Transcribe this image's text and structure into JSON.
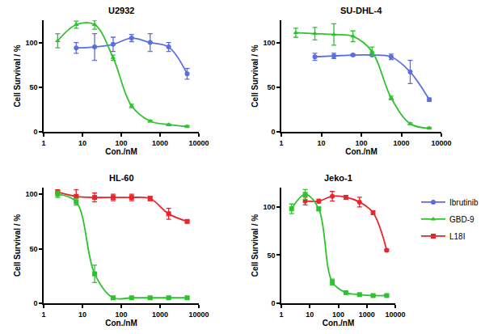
{
  "chart_data": [
    {
      "type": "line",
      "title": "U2932",
      "x_label": "Con./nM",
      "y_label": "Cell Survival / %",
      "log": "x",
      "xlim": [
        1,
        10000
      ],
      "xticks": [
        1,
        10,
        100,
        1000,
        10000
      ],
      "ylim": [
        0,
        125
      ],
      "yticks": [
        0,
        50,
        100
      ],
      "grid": false,
      "legend": "right",
      "series": [
        {
          "name": "Ibrutinib",
          "color": "#5b6ee1",
          "marker": "circle",
          "line_style": "smooth",
          "x": [
            6.9,
            20.6,
            61.7,
            185,
            556,
            1667,
            5000
          ],
          "values": [
            94,
            95,
            98,
            105,
            100,
            95,
            65
          ],
          "errors": [
            6,
            15,
            8,
            4,
            10,
            5,
            6
          ]
        },
        {
          "name": "GBD-9",
          "color": "#2fc22f",
          "marker": "triangle-up",
          "line_style": "smooth",
          "x": [
            2.3,
            6.9,
            20.6,
            61.7,
            185,
            556,
            1667,
            5000
          ],
          "values": [
            102,
            120,
            120,
            83,
            29,
            12,
            8,
            6
          ],
          "errors": [
            8,
            4,
            5,
            3,
            2,
            1,
            1,
            1
          ]
        }
      ]
    },
    {
      "type": "line",
      "title": "SU-DHL-4",
      "x_label": "Con./nM",
      "y_label": "Cell Survival / %",
      "log": "x",
      "xlim": [
        1,
        10000
      ],
      "xticks": [
        1,
        10,
        100,
        1000,
        10000
      ],
      "ylim": [
        0,
        125
      ],
      "yticks": [
        0,
        50,
        100
      ],
      "grid": false,
      "legend": "right",
      "series": [
        {
          "name": "Ibrutinib",
          "color": "#5b6ee1",
          "marker": "circle",
          "line_style": "smooth",
          "x": [
            6.9,
            20.6,
            61.7,
            185,
            556,
            1667,
            5000
          ],
          "values": [
            84,
            85,
            86,
            86,
            84,
            67,
            36
          ],
          "errors": [
            4,
            3,
            1,
            1,
            3,
            13,
            2
          ]
        },
        {
          "name": "GBD-9",
          "color": "#2fc22f",
          "marker": "triangle-up",
          "line_style": "smooth",
          "x": [
            2.3,
            6.9,
            20.6,
            61.7,
            185,
            556,
            1667,
            5000
          ],
          "values": [
            111,
            110,
            109,
            107,
            90,
            38,
            9,
            4
          ],
          "errors": [
            5,
            7,
            12,
            6,
            5,
            2,
            1,
            1
          ]
        }
      ]
    },
    {
      "type": "line",
      "title": "HL-60",
      "x_label": "Con./nM",
      "y_label": "Cell Survival / %",
      "log": "x",
      "xlim": [
        1,
        10000
      ],
      "xticks": [
        1,
        10,
        100,
        1000,
        10000
      ],
      "ylim": [
        0,
        106
      ],
      "yticks": [
        0,
        50,
        100
      ],
      "grid": false,
      "legend": "right",
      "series": [
        {
          "name": "L18I",
          "color": "#e8252b",
          "marker": "square",
          "line_style": "smooth",
          "x": [
            2.3,
            6.9,
            20.6,
            61.7,
            185,
            556,
            1667,
            5000
          ],
          "values": [
            102,
            98,
            97,
            97,
            97,
            96,
            82,
            75
          ],
          "errors": [
            2,
            6,
            4,
            3,
            3,
            2,
            5,
            1
          ]
        },
        {
          "name": "GBD-9",
          "color": "#2fc22f",
          "marker": "square",
          "line_style": "smooth",
          "x": [
            2.3,
            6.9,
            20.6,
            61.7,
            185,
            556,
            1667,
            5000
          ],
          "values": [
            100,
            93,
            27,
            5,
            5,
            5,
            5,
            5
          ],
          "errors": [
            3,
            3,
            8,
            1,
            1,
            1,
            1,
            1
          ]
        }
      ]
    },
    {
      "type": "line",
      "title": "Jeko-1",
      "x_label": "Con./nM",
      "y_label": "Cell Survival / %",
      "log": "x",
      "xlim": [
        1,
        10000
      ],
      "xticks": [
        1,
        10,
        100,
        1000,
        10000
      ],
      "ylim": [
        0,
        120
      ],
      "yticks": [
        0,
        50,
        100
      ],
      "grid": false,
      "legend": "right",
      "series": [
        {
          "name": "L18I",
          "color": "#e8252b",
          "marker": "circle",
          "line_style": "smooth",
          "x": [
            6.9,
            20.6,
            61.7,
            185,
            556,
            1667,
            5000
          ],
          "values": [
            106,
            106,
            111,
            110,
            105,
            94,
            55
          ],
          "errors": [
            4,
            2,
            5,
            2,
            5,
            2,
            1
          ]
        },
        {
          "name": "GBD-9",
          "color": "#2fc22f",
          "marker": "square",
          "line_style": "smooth",
          "x": [
            2.3,
            6.9,
            20.6,
            61.7,
            185,
            556,
            1667,
            5000
          ],
          "values": [
            98,
            113,
            98,
            22,
            11,
            9,
            8,
            8
          ],
          "errors": [
            5,
            5,
            2,
            3,
            1,
            1,
            1,
            1
          ]
        }
      ]
    }
  ]
}
